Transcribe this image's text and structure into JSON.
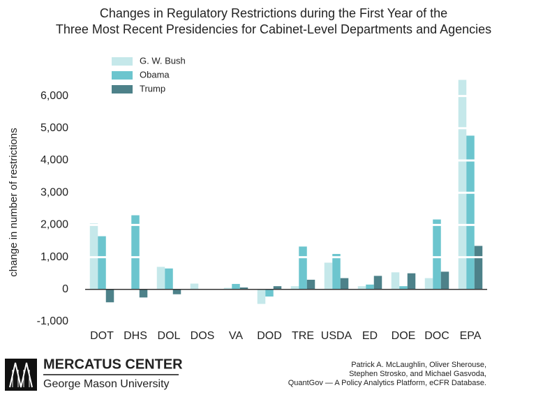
{
  "chart_data": {
    "type": "bar",
    "title": [
      "Changes in Regulatory Restrictions during the First Year of the",
      "Three Most Recent Presidencies for Cabinet-Level Departments and Agencies"
    ],
    "y_label": "change in number of restrictions",
    "categories": [
      "DOT",
      "DHS",
      "DOL",
      "DOS",
      "VA",
      "DOD",
      "TRE",
      "USDA",
      "ED",
      "DOE",
      "DOC",
      "EPA"
    ],
    "series": [
      {
        "name": "G. W. Bush",
        "color": "#c5e8ea",
        "values": [
          2050,
          0,
          700,
          180,
          50,
          -450,
          100,
          830,
          100,
          530,
          350,
          6500
        ]
      },
      {
        "name": "Obama",
        "color": "#6cc5ce",
        "values": [
          1650,
          2300,
          650,
          0,
          170,
          -220,
          1330,
          1100,
          150,
          100,
          2170,
          4770
        ]
      },
      {
        "name": "Trump",
        "color": "#4d8189",
        "values": [
          -400,
          -250,
          -150,
          0,
          60,
          100,
          300,
          350,
          420,
          500,
          550,
          1350
        ]
      }
    ],
    "ylim": [
      -1000,
      6500
    ],
    "yticks": [
      {
        "value": -1000,
        "label": "-1,000"
      },
      0,
      {
        "value": 1000,
        "label": "1,000"
      },
      {
        "value": 2000,
        "label": "2,000"
      },
      {
        "value": 3000,
        "label": "3,000"
      },
      {
        "value": 4000,
        "label": "4,000"
      },
      {
        "value": 5000,
        "label": "5,000"
      },
      {
        "value": 6000,
        "label": "6,000"
      }
    ],
    "grid": true
  },
  "footer": {
    "logo_name": "MERCATUS CENTER",
    "logo_sub": "George Mason University",
    "credit": [
      "Patrick A. McLaughlin, Oliver Sherouse,",
      "Stephen Strosko, and Michael Gasvoda,",
      "QuantGov — A Policy Analytics Platform, eCFR Database."
    ]
  }
}
